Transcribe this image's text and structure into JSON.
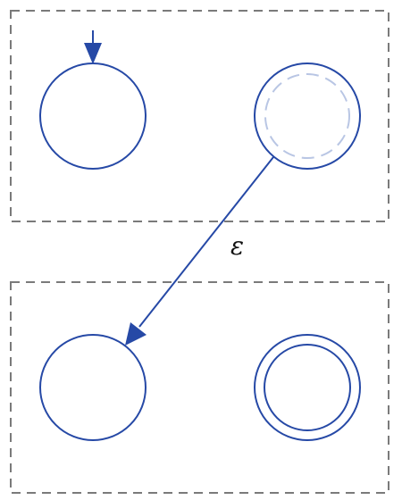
{
  "diagram": {
    "type": "nfa-concatenation",
    "colors": {
      "state_stroke": "#2649a6",
      "faded_accept_stroke": "#b9c6e4",
      "box_stroke": "#7a7a7a",
      "label_color": "#111111"
    },
    "groups": [
      {
        "id": "machine-1",
        "states": [
          "m1-start",
          "m1-accept"
        ]
      },
      {
        "id": "machine-2",
        "states": [
          "m2-start",
          "m2-accept"
        ]
      }
    ],
    "states": [
      {
        "id": "m1-start",
        "initial": true,
        "accept": false
      },
      {
        "id": "m1-accept",
        "initial": false,
        "accept": "removed"
      },
      {
        "id": "m2-start",
        "initial": false,
        "accept": false
      },
      {
        "id": "m2-accept",
        "initial": false,
        "accept": true
      }
    ],
    "transitions": [
      {
        "from": "m1-accept",
        "to": "m2-start",
        "label": "ε"
      }
    ]
  }
}
